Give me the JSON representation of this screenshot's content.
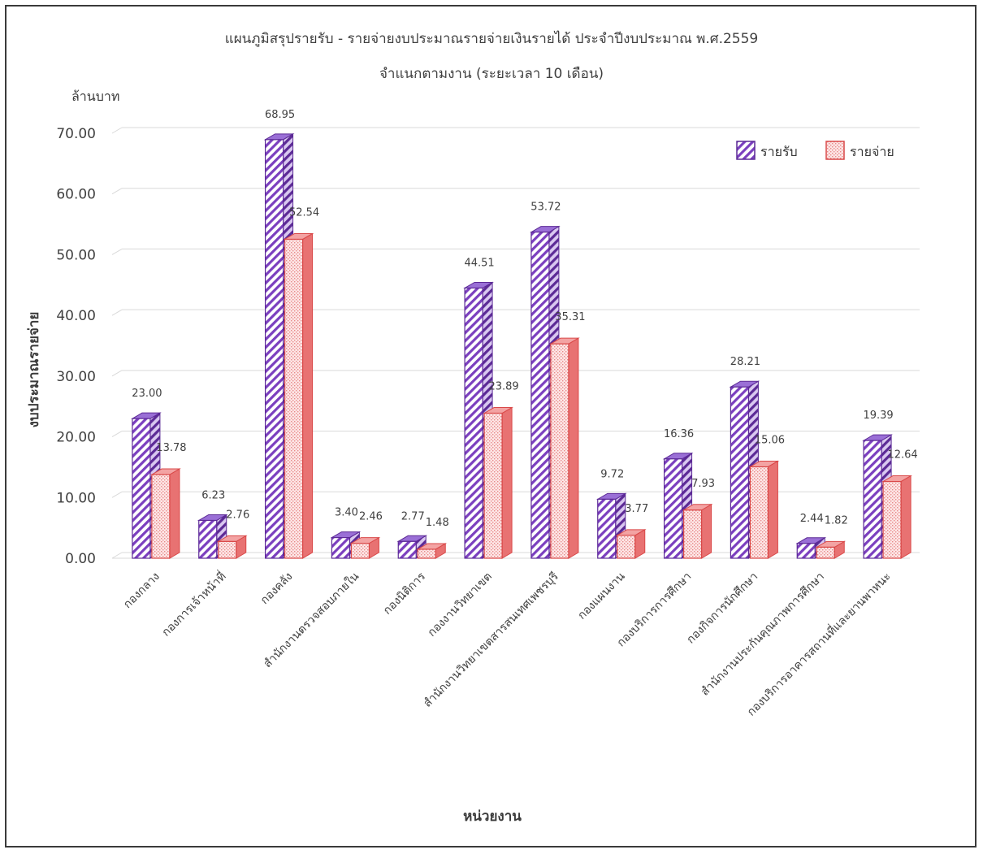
{
  "chart_data": {
    "type": "bar",
    "title": "แผนภูมิสรุปรายรับ - รายจ่ายงบประมาณรายจ่ายเงินรายได้ ประจำปีงบประมาณ พ.ศ.2559",
    "subtitle": "จำแนกตามงาน (ระยะเวลา 10 เดือน)",
    "unit_label": "ล้านบาท",
    "ylabel": "งบประมาณรายจ่าย",
    "xlabel": "หน่วยงาน",
    "ylim": [
      0,
      70
    ],
    "ytick_step": 10,
    "yticks": [
      "0.00",
      "10.00",
      "20.00",
      "30.00",
      "40.00",
      "50.00",
      "60.00",
      "70.00"
    ],
    "grid": true,
    "legend_position": "top-right",
    "categories": [
      "กองกลาง",
      "กองการเจ้าหน้าที่",
      "กองคลัง",
      "สำนักงานตรวจสอบภายใน",
      "กองนิติการ",
      "กองงานวิทยาเขต",
      "สำนักงานวิทยาเขตสารสนเทศเพชรบุรี",
      "กองแผนงาน",
      "กองบริการการศึกษา",
      "กองกิจการนักศึกษา",
      "สำนักงานประกันคุณภาพการศึกษา",
      "กองบริการอาคารสถานที่และยานพาหนะ"
    ],
    "series": [
      {
        "name": "รายรับ",
        "color": "#7b3fbf",
        "values": [
          23.0,
          6.23,
          68.95,
          3.4,
          2.77,
          44.51,
          53.72,
          9.72,
          16.36,
          28.21,
          2.44,
          19.39
        ],
        "labels": [
          "23.00",
          "6.23",
          "68.95",
          "3.40",
          "2.77",
          "44.51",
          "53.72",
          "9.72",
          "16.36",
          "28.21",
          "2.44",
          "19.39"
        ]
      },
      {
        "name": "รายจ่าย",
        "color": "#e05a5a",
        "values": [
          13.78,
          2.76,
          52.54,
          2.46,
          1.48,
          23.89,
          35.31,
          3.77,
          7.93,
          15.06,
          1.82,
          12.64
        ],
        "labels": [
          "13.78",
          "2.76",
          "52.54",
          "2.46",
          "1.48",
          "23.89",
          "35.31",
          "3.77",
          "7.93",
          "15.06",
          "1.82",
          "12.64"
        ]
      }
    ]
  }
}
